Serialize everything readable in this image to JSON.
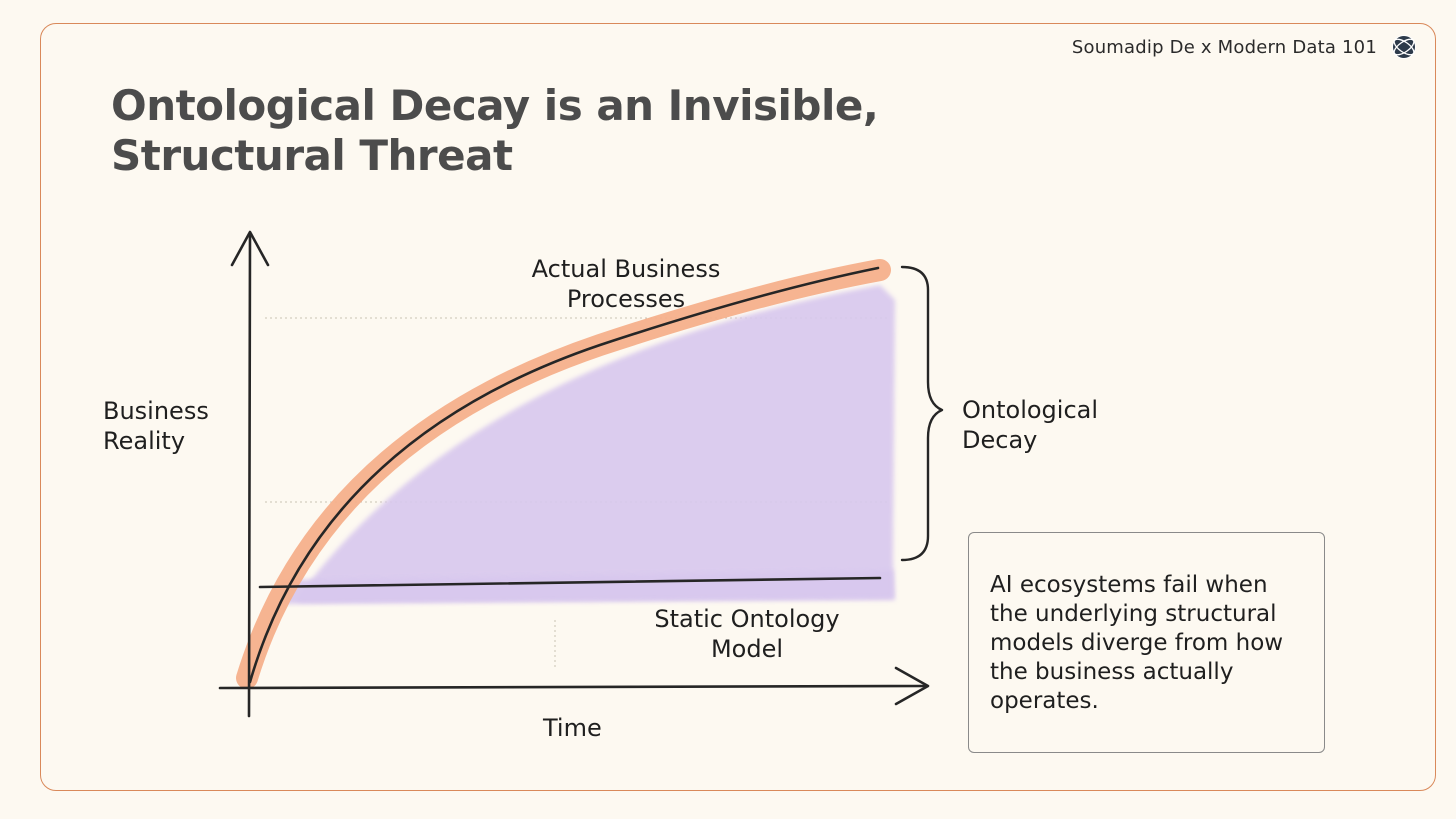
{
  "brand": {
    "text": "Soumadip De x Modern Data 101",
    "logo_icon": "globe-icon"
  },
  "title": {
    "line1": "Ontological Decay is an Invisible,",
    "line2": "Structural Threat"
  },
  "diagram": {
    "y_axis_label": {
      "line1": "Business",
      "line2": "Reality"
    },
    "x_axis_label": "Time",
    "curve_label": {
      "line1": "Actual Business",
      "line2": "Processes"
    },
    "baseline_label": {
      "line1": "Static Ontology",
      "line2": "Model"
    },
    "gap_label": {
      "line1": "Ontological",
      "line2": "Decay"
    },
    "colors": {
      "curve_highlight": "#f5b08b",
      "gap_fill": "#d8c8ee",
      "ink": "#262626",
      "frame": "#d9895a"
    }
  },
  "callout": {
    "text": "AI ecosystems fail when the underlying structural models diverge from how the business actually operates."
  }
}
